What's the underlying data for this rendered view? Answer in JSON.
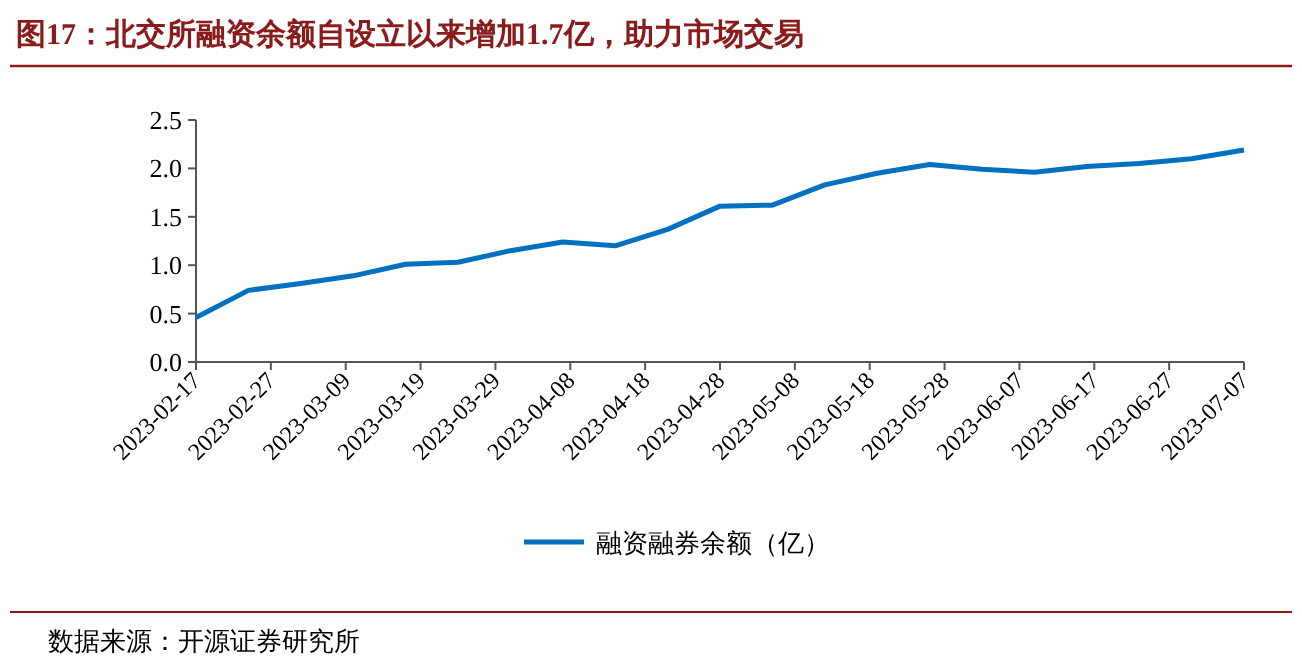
{
  "chart_data": {
    "type": "line",
    "title": "图17：北交所融资余额自设立以来增加1.7亿，助力市场交易",
    "x": [
      "2023-02-17",
      "2023-02-24",
      "2023-03-03",
      "2023-03-10",
      "2023-03-17",
      "2023-03-24",
      "2023-03-31",
      "2023-04-07",
      "2023-04-14",
      "2023-04-21",
      "2023-04-28",
      "2023-05-05",
      "2023-05-12",
      "2023-05-19",
      "2023-05-26",
      "2023-06-02",
      "2023-06-09",
      "2023-06-16",
      "2023-06-23",
      "2023-06-30",
      "2023-07-07"
    ],
    "series": [
      {
        "name": "融资融券余额（亿）",
        "color": "#0070c0",
        "values": [
          0.46,
          0.74,
          0.81,
          0.89,
          1.01,
          1.03,
          1.15,
          1.24,
          1.2,
          1.37,
          1.61,
          1.62,
          1.83,
          1.95,
          2.04,
          1.99,
          1.96,
          2.02,
          2.05,
          2.1,
          2.19
        ]
      }
    ],
    "xlim": [
      "2023-02-17",
      "2023-07-07"
    ],
    "xticks": [
      "2023-02-17",
      "2023-02-27",
      "2023-03-09",
      "2023-03-19",
      "2023-03-29",
      "2023-04-08",
      "2023-04-18",
      "2023-04-28",
      "2023-05-08",
      "2023-05-18",
      "2023-05-28",
      "2023-06-07",
      "2023-06-17",
      "2023-06-27",
      "2023-07-07"
    ],
    "ylim": [
      0,
      2.5
    ],
    "yticks": [
      {
        "value": 0,
        "label": "0.0"
      },
      0.5,
      {
        "value": 1,
        "label": "1.0"
      },
      1.5,
      {
        "value": 2,
        "label": "2.0"
      },
      2.5
    ],
    "legend": "bottom",
    "grid": false,
    "marker": "none",
    "line_style": "solid",
    "annotations": [
      "数据来源：开源证券研究所"
    ]
  }
}
